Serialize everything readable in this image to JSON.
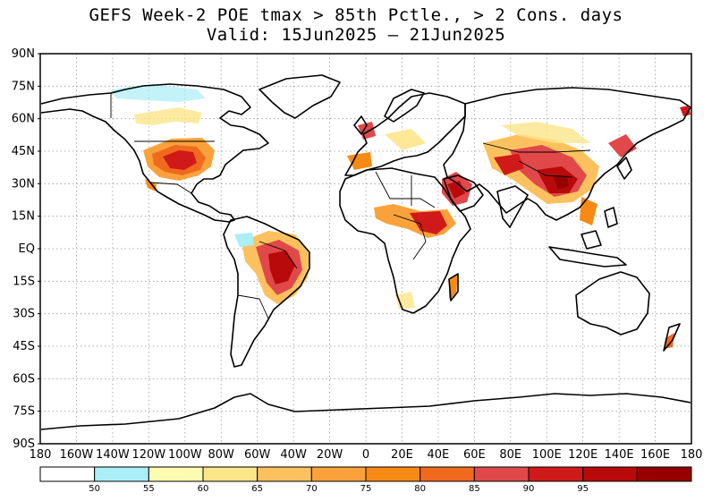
{
  "title": {
    "line1": "GEFS Week-2 POE tmax > 85th Pctle., > 2 Cons. days",
    "line2": "Valid: 15Jun2025 — 21Jun2025"
  },
  "latitude_labels": [
    "90N",
    "75N",
    "60N",
    "45N",
    "30N",
    "15N",
    "EQ",
    "15S",
    "30S",
    "45S",
    "60S",
    "75S",
    "90S"
  ],
  "longitude_labels": [
    "180",
    "160W",
    "140W",
    "120W",
    "100W",
    "80W",
    "60W",
    "40W",
    "20W",
    "0",
    "20E",
    "40E",
    "60E",
    "80E",
    "100E",
    "120E",
    "140E",
    "160E",
    "180"
  ],
  "colorbar": {
    "colors": [
      "#ffffff",
      "#aaeef7",
      "#fdfdb2",
      "#fde58a",
      "#fbc15e",
      "#f9a23c",
      "#f78a14",
      "#f06a1e",
      "#e0484a",
      "#d01a1a",
      "#b80a0a",
      "#970000"
    ],
    "labels": [
      "50",
      "55",
      "60",
      "65",
      "70",
      "75",
      "80",
      "85",
      "90",
      "95"
    ]
  },
  "regions": {
    "high_probability_areas": [
      {
        "name": "Central/Western United States",
        "level": "high"
      },
      {
        "name": "Central Brazil",
        "level": "very high"
      },
      {
        "name": "Sahel / Sudan",
        "level": "high"
      },
      {
        "name": "Arabian Peninsula",
        "level": "high"
      },
      {
        "name": "Central/Eastern China",
        "level": "very high"
      },
      {
        "name": "Northern India / Tibet",
        "level": "high"
      },
      {
        "name": "Iberia / Western Europe",
        "level": "moderate"
      },
      {
        "name": "Madagascar",
        "level": "moderate"
      },
      {
        "name": "New Zealand",
        "level": "moderate"
      }
    ]
  }
}
